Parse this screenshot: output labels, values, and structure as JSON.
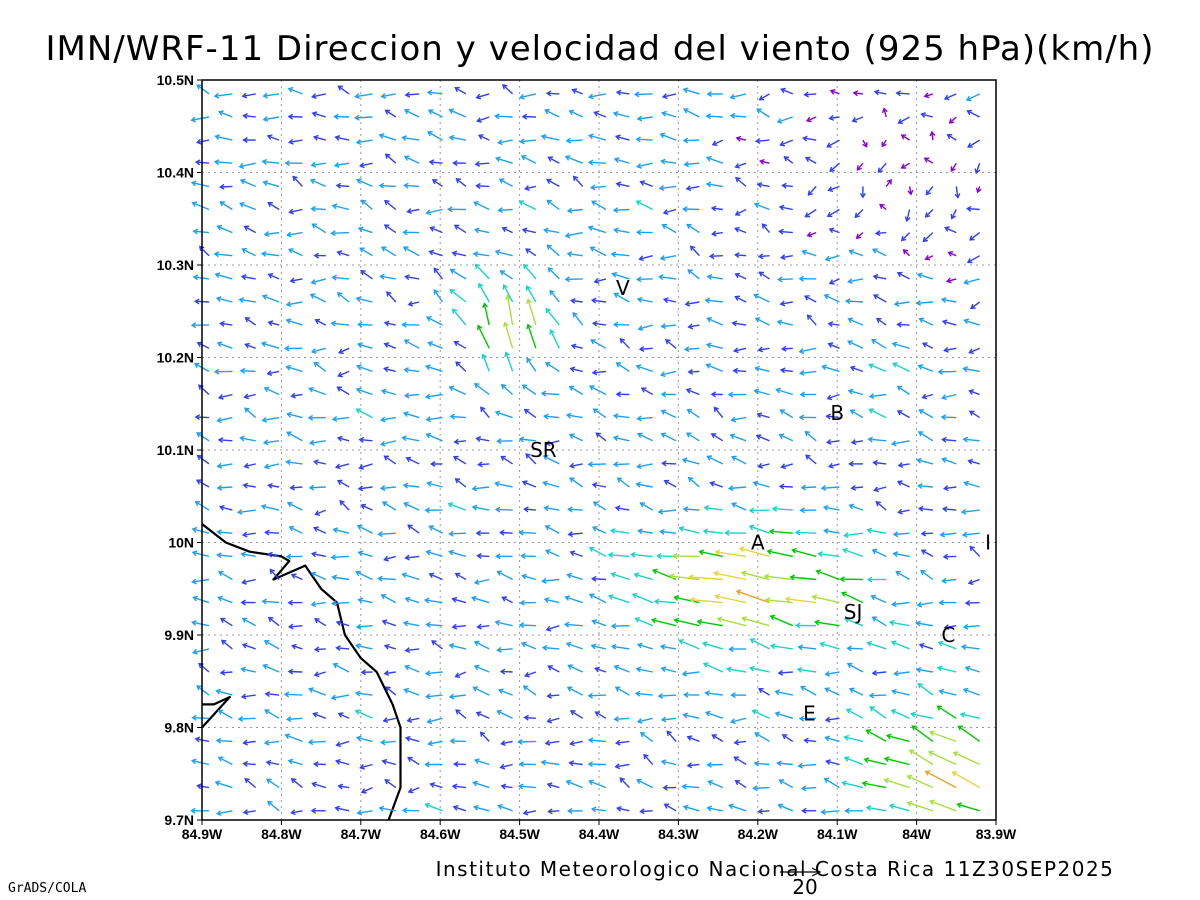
{
  "title": "IMN/WRF-11 Direccion y velocidad del viento (925 hPa)(km/h)",
  "credit": "Instituto Meteorologico Nacional Costa Rica 11Z30SEP2025",
  "software": "GrADS/COLA",
  "reference_vector": {
    "value": "20",
    "speed_kmh": 20
  },
  "map": {
    "lon_range": [
      -84.9,
      -83.9
    ],
    "lat_range": [
      9.7,
      10.5
    ],
    "lon_ticks": [
      {
        "value": -84.9,
        "label": "84.9W"
      },
      {
        "value": -84.8,
        "label": "84.8W"
      },
      {
        "value": -84.7,
        "label": "84.7W"
      },
      {
        "value": -84.6,
        "label": "84.6W"
      },
      {
        "value": -84.5,
        "label": "84.5W"
      },
      {
        "value": -84.4,
        "label": "84.4W"
      },
      {
        "value": -84.3,
        "label": "84.3W"
      },
      {
        "value": -84.2,
        "label": "84.2W"
      },
      {
        "value": -84.1,
        "label": "84.1W"
      },
      {
        "value": -84.0,
        "label": "84W"
      },
      {
        "value": -83.9,
        "label": "83.9W"
      }
    ],
    "lat_ticks": [
      {
        "value": 9.7,
        "label": "9.7N"
      },
      {
        "value": 9.8,
        "label": "9.8N"
      },
      {
        "value": 9.9,
        "label": "9.9N"
      },
      {
        "value": 10.0,
        "label": "10N"
      },
      {
        "value": 10.1,
        "label": "10.1N"
      },
      {
        "value": 10.2,
        "label": "10.2N"
      },
      {
        "value": 10.3,
        "label": "10.3N"
      },
      {
        "value": 10.4,
        "label": "10.4N"
      },
      {
        "value": 10.5,
        "label": "10.5N"
      }
    ],
    "grid_lines": true,
    "coastline": [
      [
        [
          -84.9,
          10.02
        ],
        [
          -84.87,
          10.0
        ],
        [
          -84.84,
          9.99
        ],
        [
          -84.8,
          9.985
        ],
        [
          -84.79,
          9.98
        ],
        [
          -84.81,
          9.96
        ],
        [
          -84.77,
          9.975
        ],
        [
          -84.75,
          9.95
        ],
        [
          -84.73,
          9.935
        ],
        [
          -84.72,
          9.9
        ],
        [
          -84.7,
          9.875
        ],
        [
          -84.68,
          9.86
        ],
        [
          -84.66,
          9.825
        ],
        [
          -84.65,
          9.8
        ],
        [
          -84.65,
          9.77
        ],
        [
          -84.65,
          9.735
        ],
        [
          -84.665,
          9.7
        ]
      ],
      [
        [
          -84.9,
          9.825
        ],
        [
          -84.885,
          9.825
        ],
        [
          -84.865,
          9.833
        ],
        [
          -84.9,
          9.8
        ]
      ]
    ],
    "places": [
      {
        "label": "V",
        "lon": -84.37,
        "lat": 10.275
      },
      {
        "label": "SR",
        "lon": -84.47,
        "lat": 10.1
      },
      {
        "label": "B",
        "lon": -84.1,
        "lat": 10.14
      },
      {
        "label": "A",
        "lon": -84.2,
        "lat": 10.0
      },
      {
        "label": "I",
        "lon": -83.91,
        "lat": 10.0
      },
      {
        "label": "SJ",
        "lon": -84.08,
        "lat": 9.925
      },
      {
        "label": "C",
        "lon": -83.96,
        "lat": 9.9
      },
      {
        "label": "E",
        "lon": -84.135,
        "lat": 9.815
      }
    ],
    "wind_color_scale": [
      "#8b00d0",
      "#3040f0",
      "#1ea0f0",
      "#19d2c8",
      "#00c800",
      "#a6e03c",
      "#e6d23c",
      "#f0a028",
      "#e64b32"
    ]
  }
}
